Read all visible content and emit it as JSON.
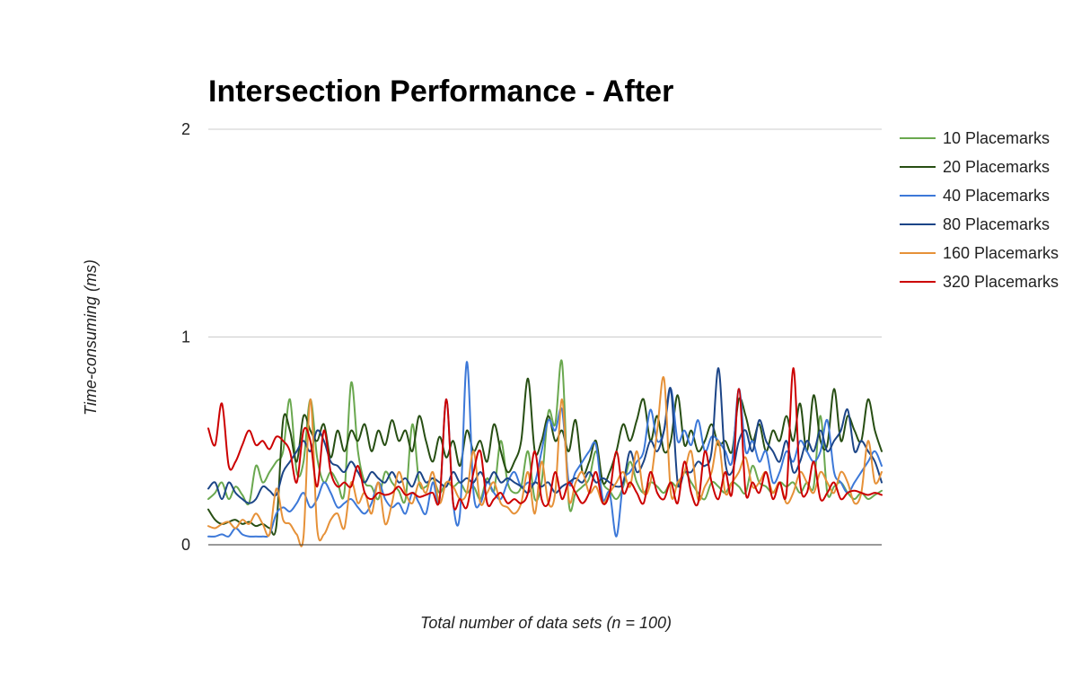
{
  "chart_data": {
    "type": "line",
    "title": "Intersection Performance - After",
    "xlabel": "Total number of data sets (n = 100)",
    "ylabel": "Time-consuming (ms)",
    "ylim": [
      0,
      2
    ],
    "yticks": [
      "0",
      "1",
      "2"
    ],
    "grid": true,
    "legend": "right",
    "x": [
      1,
      2,
      3,
      4,
      5,
      6,
      7,
      8,
      9,
      10,
      11,
      12,
      13,
      14,
      15,
      16,
      17,
      18,
      19,
      20,
      21,
      22,
      23,
      24,
      25,
      26,
      27,
      28,
      29,
      30,
      31,
      32,
      33,
      34,
      35,
      36,
      37,
      38,
      39,
      40,
      41,
      42,
      43,
      44,
      45,
      46,
      47,
      48,
      49,
      50,
      51,
      52,
      53,
      54,
      55,
      56,
      57,
      58,
      59,
      60,
      61,
      62,
      63,
      64,
      65,
      66,
      67,
      68,
      69,
      70,
      71,
      72,
      73,
      74,
      75,
      76,
      77,
      78,
      79,
      80,
      81,
      82,
      83,
      84,
      85,
      86,
      87,
      88,
      89,
      90,
      91,
      92,
      93,
      94,
      95,
      96,
      97,
      98,
      99,
      100
    ],
    "series": [
      {
        "name": "10 Placemarks",
        "color": "#6aa84f",
        "values": [
          0.22,
          0.25,
          0.3,
          0.22,
          0.28,
          0.24,
          0.2,
          0.38,
          0.3,
          0.35,
          0.4,
          0.45,
          0.7,
          0.35,
          0.4,
          0.7,
          0.42,
          0.3,
          0.35,
          0.3,
          0.25,
          0.78,
          0.45,
          0.3,
          0.28,
          0.22,
          0.35,
          0.3,
          0.26,
          0.22,
          0.58,
          0.3,
          0.28,
          0.32,
          0.25,
          0.3,
          0.28,
          0.3,
          0.25,
          0.28,
          0.22,
          0.32,
          0.26,
          0.5,
          0.3,
          0.25,
          0.28,
          0.45,
          0.22,
          0.3,
          0.64,
          0.58,
          0.88,
          0.2,
          0.25,
          0.28,
          0.32,
          0.45,
          0.3,
          0.26,
          0.22,
          0.28,
          0.4,
          0.3,
          0.25,
          0.3,
          0.28,
          0.25,
          0.3,
          0.28,
          0.35,
          0.3,
          0.25,
          0.22,
          0.3,
          0.28,
          0.25,
          0.3,
          0.28,
          0.25,
          0.38,
          0.3,
          0.28,
          0.25,
          0.3,
          0.28,
          0.3,
          0.25,
          0.3,
          0.28,
          0.62,
          0.25,
          0.28,
          0.3,
          0.25,
          0.22,
          0.25,
          0.22,
          0.24,
          0.26
        ]
      },
      {
        "name": "20 Placemarks",
        "color": "#274e13",
        "values": [
          0.17,
          0.12,
          0.1,
          0.11,
          0.12,
          0.1,
          0.11,
          0.09,
          0.1,
          0.08,
          0.09,
          0.6,
          0.55,
          0.4,
          0.62,
          0.55,
          0.5,
          0.58,
          0.42,
          0.55,
          0.45,
          0.55,
          0.5,
          0.58,
          0.45,
          0.55,
          0.48,
          0.6,
          0.5,
          0.55,
          0.45,
          0.62,
          0.5,
          0.4,
          0.52,
          0.42,
          0.5,
          0.38,
          0.55,
          0.45,
          0.5,
          0.4,
          0.58,
          0.45,
          0.35,
          0.4,
          0.5,
          0.8,
          0.45,
          0.5,
          0.62,
          0.5,
          0.55,
          0.45,
          0.6,
          0.35,
          0.4,
          0.5,
          0.3,
          0.35,
          0.45,
          0.58,
          0.5,
          0.6,
          0.7,
          0.5,
          0.62,
          0.45,
          0.5,
          0.72,
          0.48,
          0.55,
          0.45,
          0.5,
          0.58,
          0.48,
          0.5,
          0.45,
          0.7,
          0.62,
          0.5,
          0.58,
          0.45,
          0.55,
          0.5,
          0.62,
          0.5,
          0.68,
          0.45,
          0.72,
          0.5,
          0.48,
          0.75,
          0.5,
          0.62,
          0.55,
          0.5,
          0.7,
          0.55,
          0.45
        ]
      },
      {
        "name": "40 Placemarks",
        "color": "#3c78d8",
        "values": [
          0.04,
          0.04,
          0.05,
          0.04,
          0.08,
          0.05,
          0.04,
          0.04,
          0.04,
          0.05,
          0.15,
          0.18,
          0.16,
          0.2,
          0.25,
          0.18,
          0.22,
          0.3,
          0.25,
          0.18,
          0.2,
          0.22,
          0.18,
          0.15,
          0.2,
          0.3,
          0.22,
          0.18,
          0.2,
          0.15,
          0.25,
          0.2,
          0.15,
          0.3,
          0.22,
          0.7,
          0.2,
          0.15,
          0.88,
          0.25,
          0.2,
          0.3,
          0.25,
          0.22,
          0.3,
          0.35,
          0.28,
          0.3,
          0.3,
          0.45,
          0.6,
          0.55,
          0.65,
          0.3,
          0.35,
          0.4,
          0.45,
          0.48,
          0.22,
          0.25,
          0.04,
          0.3,
          0.35,
          0.4,
          0.45,
          0.65,
          0.5,
          0.55,
          0.75,
          0.5,
          0.55,
          0.48,
          0.6,
          0.45,
          0.52,
          0.5,
          0.45,
          0.4,
          0.75,
          0.45,
          0.5,
          0.4,
          0.45,
          0.3,
          0.35,
          0.45,
          0.4,
          0.5,
          0.45,
          0.4,
          0.45,
          0.6,
          0.35,
          0.3,
          0.25,
          0.3,
          0.35,
          0.4,
          0.45,
          0.38
        ]
      },
      {
        "name": "80 Placemarks",
        "color": "#1c4587",
        "values": [
          0.27,
          0.3,
          0.22,
          0.3,
          0.25,
          0.22,
          0.2,
          0.22,
          0.28,
          0.26,
          0.24,
          0.35,
          0.4,
          0.45,
          0.5,
          0.45,
          0.55,
          0.5,
          0.4,
          0.38,
          0.35,
          0.4,
          0.35,
          0.3,
          0.35,
          0.32,
          0.3,
          0.35,
          0.3,
          0.32,
          0.28,
          0.35,
          0.3,
          0.32,
          0.3,
          0.28,
          0.35,
          0.3,
          0.32,
          0.3,
          0.35,
          0.3,
          0.35,
          0.3,
          0.32,
          0.3,
          0.28,
          0.25,
          0.3,
          0.28,
          0.3,
          0.25,
          0.28,
          0.3,
          0.32,
          0.3,
          0.35,
          0.3,
          0.32,
          0.3,
          0.28,
          0.3,
          0.45,
          0.35,
          0.4,
          0.5,
          0.45,
          0.55,
          0.75,
          0.3,
          0.35,
          0.35,
          0.4,
          0.38,
          0.45,
          0.85,
          0.4,
          0.35,
          0.5,
          0.55,
          0.45,
          0.6,
          0.5,
          0.45,
          0.4,
          0.5,
          0.35,
          0.4,
          0.5,
          0.45,
          0.55,
          0.45,
          0.5,
          0.55,
          0.65,
          0.45,
          0.5,
          0.45,
          0.4,
          0.3
        ]
      },
      {
        "name": "160 Placemarks",
        "color": "#e69138",
        "values": [
          0.09,
          0.08,
          0.1,
          0.11,
          0.08,
          0.12,
          0.1,
          0.15,
          0.1,
          0.05,
          0.27,
          0.12,
          0.1,
          0.05,
          0.04,
          0.7,
          0.08,
          0.05,
          0.12,
          0.15,
          0.08,
          0.3,
          0.2,
          0.25,
          0.15,
          0.3,
          0.1,
          0.2,
          0.35,
          0.25,
          0.2,
          0.3,
          0.25,
          0.35,
          0.2,
          0.3,
          0.28,
          0.22,
          0.25,
          0.45,
          0.2,
          0.25,
          0.3,
          0.2,
          0.18,
          0.15,
          0.2,
          0.35,
          0.15,
          0.4,
          0.2,
          0.25,
          0.7,
          0.22,
          0.3,
          0.35,
          0.25,
          0.28,
          0.2,
          0.25,
          0.3,
          0.35,
          0.28,
          0.45,
          0.25,
          0.3,
          0.55,
          0.8,
          0.25,
          0.3,
          0.35,
          0.45,
          0.22,
          0.28,
          0.35,
          0.5,
          0.25,
          0.3,
          0.35,
          0.42,
          0.28,
          0.3,
          0.35,
          0.25,
          0.3,
          0.2,
          0.25,
          0.35,
          0.3,
          0.25,
          0.35,
          0.3,
          0.25,
          0.35,
          0.3,
          0.2,
          0.25,
          0.5,
          0.3,
          0.35
        ]
      },
      {
        "name": "320 Placemarks",
        "color": "#cc0000",
        "values": [
          0.56,
          0.48,
          0.68,
          0.38,
          0.4,
          0.48,
          0.55,
          0.48,
          0.5,
          0.46,
          0.52,
          0.5,
          0.45,
          0.3,
          0.55,
          0.5,
          0.28,
          0.55,
          0.35,
          0.28,
          0.3,
          0.28,
          0.38,
          0.25,
          0.22,
          0.25,
          0.24,
          0.25,
          0.28,
          0.24,
          0.25,
          0.23,
          0.24,
          0.25,
          0.22,
          0.7,
          0.2,
          0.22,
          0.18,
          0.35,
          0.45,
          0.2,
          0.22,
          0.25,
          0.2,
          0.22,
          0.2,
          0.25,
          0.45,
          0.22,
          0.2,
          0.35,
          0.22,
          0.3,
          0.25,
          0.2,
          0.25,
          0.35,
          0.2,
          0.25,
          0.45,
          0.25,
          0.3,
          0.25,
          0.2,
          0.35,
          0.25,
          0.22,
          0.3,
          0.2,
          0.4,
          0.25,
          0.2,
          0.45,
          0.3,
          0.22,
          0.35,
          0.25,
          0.75,
          0.25,
          0.3,
          0.25,
          0.35,
          0.22,
          0.3,
          0.25,
          0.85,
          0.3,
          0.25,
          0.4,
          0.22,
          0.25,
          0.3,
          0.22,
          0.25,
          0.26,
          0.25,
          0.24,
          0.25,
          0.24
        ]
      }
    ]
  }
}
